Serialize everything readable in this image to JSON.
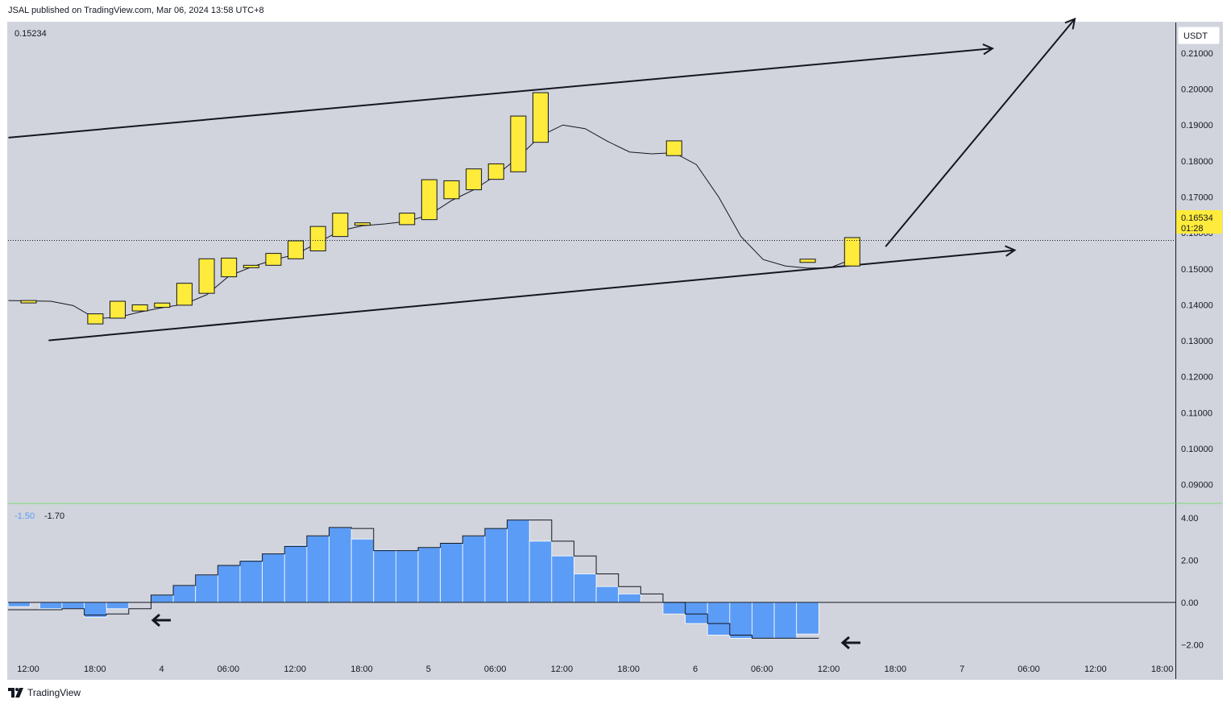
{
  "header": {
    "text": "JSAL published on TradingView.com, Mar 06, 2024 13:58 UTC+8"
  },
  "footer": {
    "brand": "TradingView"
  },
  "colors": {
    "background": "#d1d4dc",
    "candle": "#ffeb3b",
    "histogram": "#5b9cf6",
    "separator": "#4caf50",
    "price_label_bg": "#ffeb3b"
  },
  "price_pane": {
    "legend_value": "0.15234",
    "currency": "USDT",
    "current_price": "0.16534",
    "countdown": "01:28",
    "y_ticks": [
      "0.21000",
      "0.20000",
      "0.19000",
      "0.18000",
      "0.17000",
      "0.16000",
      "0.15000",
      "0.14000",
      "0.13000",
      "0.12000",
      "0.11000",
      "0.10000",
      "0.09000"
    ]
  },
  "indicator_pane": {
    "legend_values": [
      "-1.50",
      "-1.70"
    ],
    "y_ticks": [
      "4.00",
      "2.00",
      "0.00",
      "−2.00"
    ]
  },
  "x_axis": {
    "ticks": [
      "12:00",
      "18:00",
      "4",
      "06:00",
      "12:00",
      "18:00",
      "5",
      "06:00",
      "12:00",
      "18:00",
      "6",
      "06:00",
      "12:00",
      "18:00",
      "7",
      "06:00",
      "12:00",
      "18:00"
    ]
  },
  "chart_data": [
    {
      "type": "candlestick",
      "interval": "1.5h",
      "x_start": "Mar 3 12:00",
      "ylim": [
        0.085,
        0.2185
      ],
      "candles": [
        {
          "open": 0.1412,
          "close": 0.1408
        },
        null,
        null,
        {
          "open": 0.1347,
          "close": 0.1375
        },
        {
          "open": 0.1363,
          "close": 0.141
        },
        {
          "open": 0.1383,
          "close": 0.14
        },
        {
          "open": 0.1393,
          "close": 0.1405
        },
        {
          "open": 0.1399,
          "close": 0.146
        },
        {
          "open": 0.1432,
          "close": 0.1528
        },
        {
          "open": 0.1478,
          "close": 0.153
        },
        {
          "open": 0.1505,
          "close": 0.151
        },
        {
          "open": 0.151,
          "close": 0.1543
        },
        {
          "open": 0.1528,
          "close": 0.1578
        },
        {
          "open": 0.155,
          "close": 0.1618
        },
        {
          "open": 0.159,
          "close": 0.1655
        },
        {
          "open": 0.1622,
          "close": 0.1628
        },
        null,
        {
          "open": 0.1623,
          "close": 0.1655
        },
        {
          "open": 0.1637,
          "close": 0.1748
        },
        {
          "open": 0.1695,
          "close": 0.1745
        },
        {
          "open": 0.172,
          "close": 0.1778
        },
        {
          "open": 0.1749,
          "close": 0.1792
        },
        {
          "open": 0.177,
          "close": 0.1925
        },
        {
          "open": 0.1852,
          "close": 0.199
        },
        null,
        null,
        null,
        null,
        null,
        {
          "open": 0.1815,
          "close": 0.1856
        },
        null,
        null,
        null,
        null,
        null,
        {
          "open": 0.1518,
          "close": 0.1527
        },
        null,
        {
          "open": 0.1508,
          "close": 0.1587
        }
      ],
      "moving_average": [
        [
          0,
          0.1412
        ],
        [
          1,
          0.141
        ],
        [
          2,
          0.1398
        ],
        [
          3,
          0.1362
        ],
        [
          4,
          0.1365
        ],
        [
          5,
          0.138
        ],
        [
          6,
          0.1392
        ],
        [
          7,
          0.1402
        ],
        [
          8,
          0.1428
        ],
        [
          9,
          0.148
        ],
        [
          10,
          0.1505
        ],
        [
          11,
          0.1525
        ],
        [
          12,
          0.154
        ],
        [
          13,
          0.1573
        ],
        [
          14,
          0.1606
        ],
        [
          15,
          0.162
        ],
        [
          16,
          0.1625
        ],
        [
          17,
          0.1632
        ],
        [
          18,
          0.165
        ],
        [
          19,
          0.169
        ],
        [
          20,
          0.172
        ],
        [
          21,
          0.176
        ],
        [
          22,
          0.181
        ],
        [
          23,
          0.187
        ],
        [
          24,
          0.19
        ],
        [
          25,
          0.189
        ],
        [
          26,
          0.1855
        ],
        [
          27,
          0.1825
        ],
        [
          28,
          0.182
        ],
        [
          29,
          0.1823
        ],
        [
          30,
          0.179
        ],
        [
          31,
          0.17
        ],
        [
          32,
          0.159
        ],
        [
          33,
          0.1526
        ],
        [
          34,
          0.1508
        ],
        [
          35,
          0.1502
        ],
        [
          36,
          0.1503
        ],
        [
          37,
          0.1527
        ]
      ],
      "drawings": {
        "channel_upper": {
          "from": [
            0,
            0.1865
          ],
          "to": [
            43.3,
            0.2113
          ]
        },
        "channel_lower": {
          "from": [
            0.9,
            0.1301
          ],
          "to": [
            44.3,
            0.1552
          ]
        },
        "projection_arrow": {
          "from": [
            38.5,
            0.1562
          ],
          "to": [
            47,
            0.2195
          ]
        }
      }
    },
    {
      "type": "bar",
      "name": "histogram",
      "ylim": [
        -2.6,
        4.65
      ],
      "values": [
        -0.2,
        -0.3,
        -0.3,
        -0.7,
        -0.3,
        0,
        0.35,
        0.8,
        1.3,
        1.75,
        2.0,
        2.3,
        2.7,
        3.15,
        3.55,
        3.0,
        2.5,
        2.45,
        2.6,
        2.8,
        3.15,
        3.5,
        3.9,
        2.9,
        2.2,
        1.35,
        0.75,
        0.4,
        0,
        -0.55,
        -1.0,
        -1.55,
        -1.7,
        -1.7,
        -1.7,
        -1.5
      ],
      "signal_line": [
        -0.35,
        -0.35,
        -0.3,
        -0.6,
        -0.55,
        -0.3,
        0.35,
        0.8,
        1.3,
        1.75,
        1.95,
        2.3,
        2.65,
        3.15,
        3.55,
        3.5,
        2.45,
        2.45,
        2.6,
        2.8,
        3.15,
        3.5,
        3.9,
        3.9,
        2.9,
        2.2,
        1.35,
        0.75,
        0.4,
        0,
        -0.55,
        -1.0,
        -1.55,
        -1.7,
        -1.7,
        -1.7
      ]
    }
  ]
}
